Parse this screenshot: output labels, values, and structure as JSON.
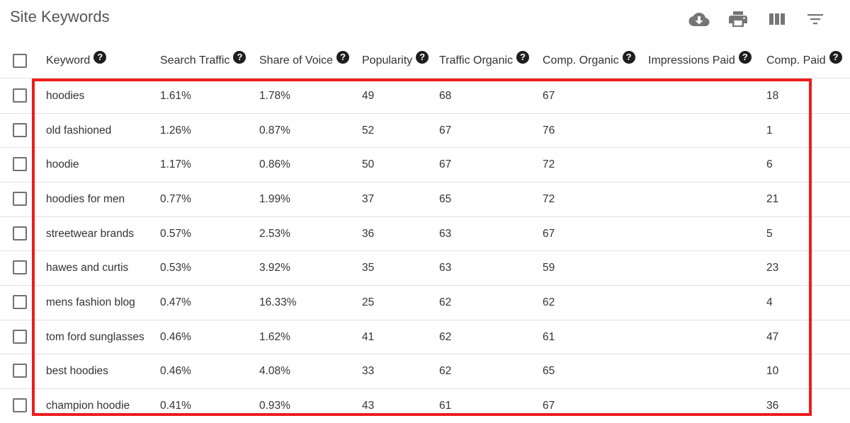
{
  "page": {
    "title": "Site Keywords"
  },
  "toolbar": {
    "icons": [
      "download-cloud-icon",
      "print-icon",
      "columns-icon",
      "filter-icon"
    ]
  },
  "table": {
    "columns": [
      "Keyword",
      "Search Traffic",
      "Share of Voice",
      "Popularity",
      "Traffic Organic",
      "Comp. Organic",
      "Impressions Paid",
      "Comp. Paid"
    ],
    "help_glyph": "?",
    "rows": [
      [
        "hoodies",
        "1.61%",
        "1.78%",
        "49",
        "68",
        "67",
        "",
        "18"
      ],
      [
        "old fashioned",
        "1.26%",
        "0.87%",
        "52",
        "67",
        "76",
        "",
        "1"
      ],
      [
        "hoodie",
        "1.17%",
        "0.86%",
        "50",
        "67",
        "72",
        "",
        "6"
      ],
      [
        "hoodies for men",
        "0.77%",
        "1.99%",
        "37",
        "65",
        "72",
        "",
        "21"
      ],
      [
        "streetwear brands",
        "0.57%",
        "2.53%",
        "36",
        "63",
        "67",
        "",
        "5"
      ],
      [
        "hawes and curtis",
        "0.53%",
        "3.92%",
        "35",
        "63",
        "59",
        "",
        "23"
      ],
      [
        "mens fashion blog",
        "0.47%",
        "16.33%",
        "25",
        "62",
        "62",
        "",
        "4"
      ],
      [
        "tom ford sunglasses",
        "0.46%",
        "1.62%",
        "41",
        "62",
        "61",
        "",
        "47"
      ],
      [
        "best hoodies",
        "0.46%",
        "4.08%",
        "33",
        "62",
        "65",
        "",
        "10"
      ],
      [
        "champion hoodie",
        "0.41%",
        "0.93%",
        "43",
        "61",
        "67",
        "",
        "36"
      ]
    ]
  },
  "colors": {
    "highlight": "#ee1c1c",
    "icon": "#757575",
    "help_icon": "#1e1e1e"
  }
}
